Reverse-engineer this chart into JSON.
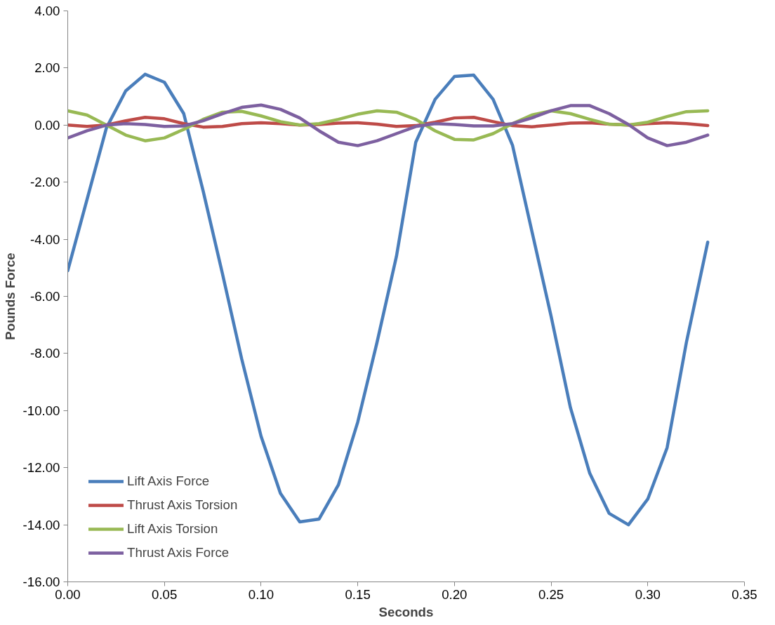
{
  "chart_data": {
    "type": "line",
    "xlabel": "Seconds",
    "ylabel": "Pounds Force",
    "x": [
      0,
      0.01,
      0.02,
      0.03,
      0.04,
      0.05,
      0.06,
      0.07,
      0.08,
      0.09,
      0.1,
      0.11,
      0.12,
      0.13,
      0.14,
      0.15,
      0.16,
      0.17,
      0.18,
      0.19,
      0.2,
      0.21,
      0.22,
      0.23,
      0.24,
      0.25,
      0.26,
      0.27,
      0.28,
      0.29,
      0.3,
      0.31,
      0.32,
      0.331
    ],
    "series": [
      {
        "name": "Lift Axis Force",
        "color": "#4a7ebb",
        "values": [
          -5.1,
          -2.6,
          -0.1,
          1.2,
          1.78,
          1.5,
          0.4,
          -2.3,
          -5.2,
          -8.2,
          -10.9,
          -12.9,
          -13.9,
          -13.8,
          -12.6,
          -10.4,
          -7.6,
          -4.6,
          -0.6,
          0.9,
          1.7,
          1.75,
          0.9,
          -0.7,
          -3.7,
          -6.7,
          -9.9,
          -12.2,
          -13.6,
          -14.0,
          -13.1,
          -11.3,
          -7.6,
          -4.1
        ]
      },
      {
        "name": "Thrust Axis Torsion",
        "color": "#be4b48",
        "values": [
          0.0,
          -0.05,
          0.0,
          0.15,
          0.27,
          0.22,
          0.05,
          -0.07,
          -0.05,
          0.05,
          0.08,
          0.05,
          0.0,
          0.02,
          0.07,
          0.08,
          0.03,
          -0.05,
          -0.02,
          0.1,
          0.25,
          0.27,
          0.12,
          -0.02,
          -0.06,
          0.0,
          0.07,
          0.08,
          0.03,
          0.0,
          0.05,
          0.08,
          0.05,
          -0.02
        ]
      },
      {
        "name": "Lift Axis Torsion",
        "color": "#98b954",
        "values": [
          0.5,
          0.35,
          0.0,
          -0.35,
          -0.55,
          -0.45,
          -0.15,
          0.2,
          0.45,
          0.48,
          0.32,
          0.12,
          0.0,
          0.05,
          0.2,
          0.38,
          0.5,
          0.45,
          0.2,
          -0.2,
          -0.5,
          -0.52,
          -0.3,
          0.05,
          0.35,
          0.5,
          0.4,
          0.2,
          0.03,
          0.0,
          0.1,
          0.3,
          0.47,
          0.5
        ]
      },
      {
        "name": "Thrust Axis Force",
        "color": "#7d60a0",
        "values": [
          -0.45,
          -0.2,
          0.0,
          0.05,
          0.02,
          -0.05,
          -0.03,
          0.15,
          0.4,
          0.62,
          0.7,
          0.55,
          0.25,
          -0.2,
          -0.6,
          -0.72,
          -0.55,
          -0.3,
          -0.05,
          0.05,
          0.02,
          -0.03,
          -0.03,
          0.05,
          0.25,
          0.5,
          0.68,
          0.68,
          0.4,
          0.02,
          -0.45,
          -0.72,
          -0.6,
          -0.35
        ]
      }
    ],
    "xlim": [
      0,
      0.35
    ],
    "xticks": [
      {
        "value": 0,
        "label": "0.00"
      },
      {
        "value": 0.05,
        "label": "0.05"
      },
      {
        "value": 0.1,
        "label": "0.10"
      },
      {
        "value": 0.15,
        "label": "0.15"
      },
      {
        "value": 0.2,
        "label": "0.20"
      },
      {
        "value": 0.25,
        "label": "0.25"
      },
      {
        "value": 0.3,
        "label": "0.30"
      },
      {
        "value": 0.35,
        "label": "0.35"
      }
    ],
    "ylim": [
      -16,
      4
    ],
    "yticks": [
      {
        "value": -16,
        "label": "-16.00"
      },
      {
        "value": -14,
        "label": "-14.00"
      },
      {
        "value": -12,
        "label": "-12.00"
      },
      {
        "value": -10,
        "label": "-10.00"
      },
      {
        "value": -8,
        "label": "-8.00"
      },
      {
        "value": -6,
        "label": "-6.00"
      },
      {
        "value": -4,
        "label": "-4.00"
      },
      {
        "value": -2,
        "label": "-2.00"
      },
      {
        "value": 0,
        "label": "0.00"
      },
      {
        "value": 2,
        "label": "2.00"
      },
      {
        "value": 4,
        "label": "4.00"
      }
    ],
    "grid": false,
    "legend": "bottom left",
    "marker": "none",
    "line_style": "solid"
  }
}
